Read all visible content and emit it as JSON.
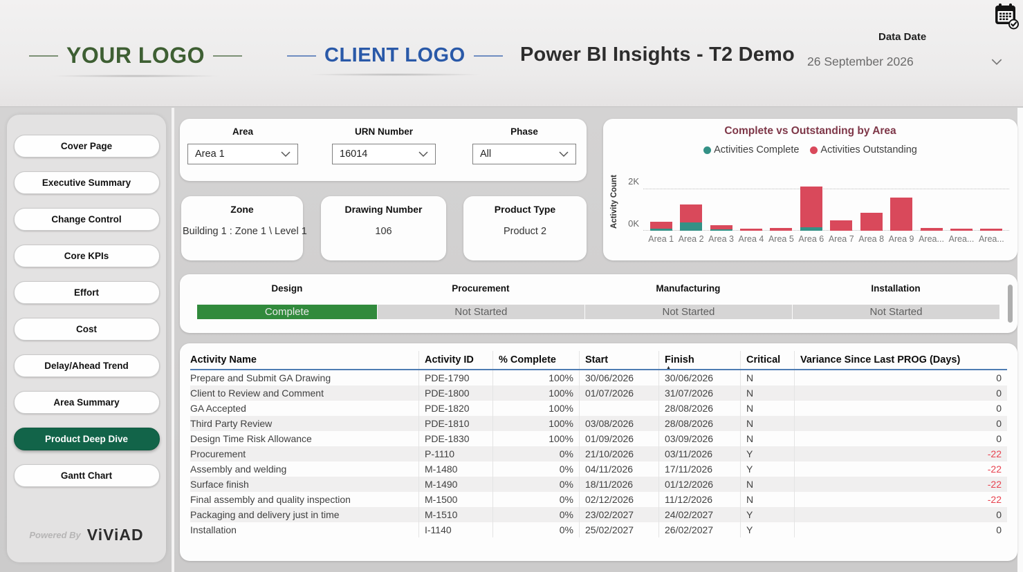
{
  "colors": {
    "complete": "#349186",
    "outstanding": "#d9495b",
    "phase_complete_green": "#318a3c",
    "nav_active_green": "#126449",
    "chart_title_maroon": "#7e3748",
    "variance_negative_red": "#e8424f",
    "your_logo_green": "#3e5f33",
    "client_logo_blue": "#2a59a8",
    "table_header_underline_blue": "#4e7cb3"
  },
  "header": {
    "your_logo": "YOUR LOGO",
    "client_logo": "CLIENT LOGO",
    "title": "Power BI Insights - T2 Demo",
    "data_date_label": "Data Date",
    "data_date_value": "26 September 2026"
  },
  "sidebar": {
    "items": [
      {
        "label": "Cover Page",
        "active": false
      },
      {
        "label": "Executive Summary",
        "active": false
      },
      {
        "label": "Change Control",
        "active": false
      },
      {
        "label": "Core KPIs",
        "active": false
      },
      {
        "label": "Effort",
        "active": false
      },
      {
        "label": "Cost",
        "active": false
      },
      {
        "label": "Delay/Ahead Trend",
        "active": false
      },
      {
        "label": "Area Summary",
        "active": false
      },
      {
        "label": "Product Deep Dive",
        "active": true
      },
      {
        "label": "Gantt Chart",
        "active": false
      }
    ],
    "powered_by": "Powered By",
    "brand": "ViViAD"
  },
  "filters": [
    {
      "label": "Area",
      "value": "Area 1"
    },
    {
      "label": "URN Number",
      "value": "16014"
    },
    {
      "label": "Phase",
      "value": "All"
    }
  ],
  "cards": [
    {
      "label": "Zone",
      "value": "Building 1 : Zone 1 \\ Level 1"
    },
    {
      "label": "Drawing Number",
      "value": "106"
    },
    {
      "label": "Product Type",
      "value": "Product 2"
    }
  ],
  "chart_data": {
    "type": "bar",
    "stacked": true,
    "title": "Complete vs Outstanding by Area",
    "xlabel": "",
    "ylabel": "Activity Count",
    "y_ticks": [
      "0K",
      "2K"
    ],
    "ylim": [
      0,
      2400
    ],
    "grid": "dotted-horizontal",
    "legend_position": "top",
    "categories": [
      "Area 1",
      "Area 2",
      "Area 3",
      "Area 4",
      "Area 5",
      "Area 6",
      "Area 7",
      "Area 8",
      "Area 9",
      "Area...",
      "Area...",
      "Area..."
    ],
    "series": [
      {
        "name": "Activities Complete",
        "values": [
          100,
          380,
          70,
          0,
          0,
          180,
          0,
          0,
          0,
          0,
          0,
          0
        ]
      },
      {
        "name": "Activities Outstanding",
        "values": [
          320,
          880,
          180,
          110,
          140,
          1920,
          480,
          850,
          1560,
          120,
          100,
          100
        ]
      }
    ]
  },
  "phases": [
    {
      "name": "Design",
      "status": "Complete",
      "state": "complete"
    },
    {
      "name": "Procurement",
      "status": "Not Started",
      "state": "not_started"
    },
    {
      "name": "Manufacturing",
      "status": "Not Started",
      "state": "not_started"
    },
    {
      "name": "Installation",
      "status": "Not Started",
      "state": "not_started"
    }
  ],
  "table": {
    "columns": [
      {
        "label": "Activity Name",
        "value_align": "left"
      },
      {
        "label": "Activity ID",
        "value_align": "left"
      },
      {
        "label": "% Complete",
        "value_align": "right"
      },
      {
        "label": "Start",
        "value_align": "left"
      },
      {
        "label": "Finish",
        "value_align": "left",
        "sorted": "asc"
      },
      {
        "label": "Critical",
        "value_align": "left"
      },
      {
        "label": "Variance Since Last PROG (Days)",
        "value_align": "right"
      }
    ],
    "rows": [
      [
        "Prepare and Submit GA Drawing",
        "PDE-1790",
        "100%",
        "30/06/2026",
        "30/06/2026",
        "N",
        "0"
      ],
      [
        "Client to Review and Comment",
        "PDE-1800",
        "100%",
        "01/07/2026",
        "31/07/2026",
        "N",
        "0"
      ],
      [
        "GA Accepted",
        "PDE-1820",
        "100%",
        "",
        "28/08/2026",
        "N",
        "0"
      ],
      [
        "Third Party Review",
        "PDE-1810",
        "100%",
        "03/08/2026",
        "28/08/2026",
        "N",
        "0"
      ],
      [
        "Design Time Risk Allowance",
        "PDE-1830",
        "100%",
        "01/09/2026",
        "03/09/2026",
        "N",
        "0"
      ],
      [
        "Procurement",
        "P-1110",
        "0%",
        "21/10/2026",
        "03/11/2026",
        "Y",
        "-22"
      ],
      [
        "Assembly and welding",
        "M-1480",
        "0%",
        "04/11/2026",
        "17/11/2026",
        "Y",
        "-22"
      ],
      [
        "Surface finish",
        "M-1490",
        "0%",
        "18/11/2026",
        "01/12/2026",
        "N",
        "-22"
      ],
      [
        "Final assembly and quality inspection",
        "M-1500",
        "0%",
        "02/12/2026",
        "11/12/2026",
        "N",
        "-22"
      ],
      [
        "Packaging and delivery just in time",
        "M-1510",
        "0%",
        "23/02/2027",
        "24/02/2027",
        "Y",
        "0"
      ],
      [
        "Installation",
        "I-1140",
        "0%",
        "25/02/2027",
        "26/02/2027",
        "Y",
        "0"
      ]
    ]
  }
}
